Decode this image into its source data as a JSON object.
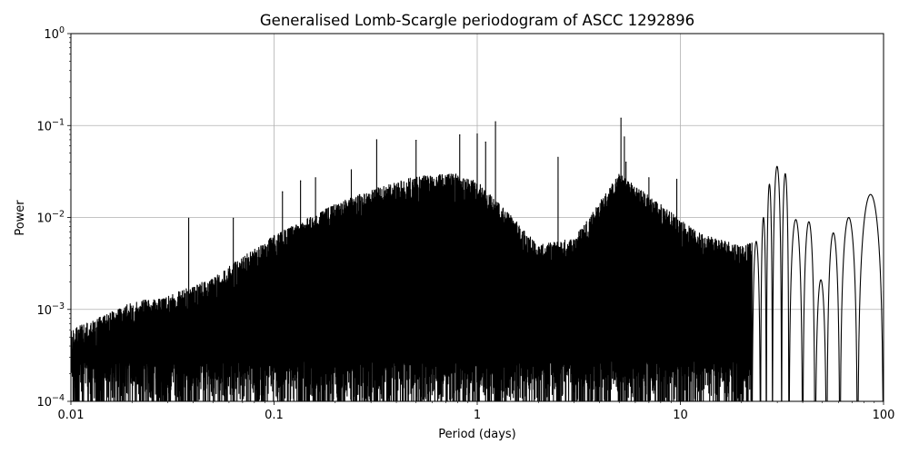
{
  "chart_data": {
    "type": "line",
    "title": "Generalised Lomb-Scargle periodogram of ASCC 1292896",
    "xlabel": "Period (days)",
    "ylabel": "Power",
    "xscale": "log",
    "yscale": "log",
    "xlim": [
      0.01,
      100
    ],
    "ylim": [
      0.0001,
      1
    ],
    "grid": true,
    "line_color": "#000000",
    "x_ticks": [
      {
        "value": 0.01,
        "label": "0.01"
      },
      {
        "value": 0.1,
        "label": "0.1"
      },
      {
        "value": 1,
        "label": "1"
      },
      {
        "value": 10,
        "label": "10"
      },
      {
        "value": 100,
        "label": "100"
      }
    ],
    "y_ticks": [
      {
        "value": 0.0001,
        "base": "10",
        "exp": "−4"
      },
      {
        "value": 0.001,
        "base": "10",
        "exp": "−3"
      },
      {
        "value": 0.01,
        "base": "10",
        "exp": "−2"
      },
      {
        "value": 0.1,
        "base": "10",
        "exp": "−1"
      },
      {
        "value": 1,
        "base": "10",
        "exp": "0"
      }
    ],
    "series": [
      {
        "envelope": [
          [
            0.01,
            0.0006
          ],
          [
            0.015,
            0.0009
          ],
          [
            0.02,
            0.0012
          ],
          [
            0.03,
            0.0014
          ],
          [
            0.04,
            0.0018
          ],
          [
            0.05,
            0.0022
          ],
          [
            0.06,
            0.003
          ],
          [
            0.08,
            0.0045
          ],
          [
            0.1,
            0.0065
          ],
          [
            0.15,
            0.01
          ],
          [
            0.2,
            0.014
          ],
          [
            0.3,
            0.02
          ],
          [
            0.5,
            0.028
          ],
          [
            0.8,
            0.03
          ],
          [
            1.0,
            0.025
          ],
          [
            1.5,
            0.01
          ],
          [
            2.0,
            0.005
          ],
          [
            3.0,
            0.006
          ],
          [
            5.0,
            0.03
          ],
          [
            8.0,
            0.014
          ],
          [
            12.0,
            0.007
          ],
          [
            20.0,
            0.005
          ],
          [
            30.0,
            0.006
          ]
        ],
        "peaks": [
          [
            0.038,
            0.0098
          ],
          [
            0.063,
            0.0098
          ],
          [
            0.11,
            0.019
          ],
          [
            0.135,
            0.025
          ],
          [
            0.16,
            0.027
          ],
          [
            0.24,
            0.033
          ],
          [
            0.32,
            0.07
          ],
          [
            0.5,
            0.069
          ],
          [
            0.82,
            0.079
          ],
          [
            1.0,
            0.081
          ],
          [
            1.1,
            0.066
          ],
          [
            1.23,
            0.11
          ],
          [
            2.5,
            0.045
          ],
          [
            5.1,
            0.12
          ],
          [
            5.3,
            0.075
          ],
          [
            5.4,
            0.04
          ],
          [
            7.0,
            0.027
          ],
          [
            9.6,
            0.026
          ]
        ],
        "lobes": [
          {
            "lo": 22.5,
            "hi": 24.8,
            "peak": 0.0055
          },
          {
            "lo": 24.8,
            "hi": 26.5,
            "peak": 0.01
          },
          {
            "lo": 26.5,
            "hi": 28.4,
            "peak": 0.023
          },
          {
            "lo": 28.4,
            "hi": 31.5,
            "peak": 0.036
          },
          {
            "lo": 31.5,
            "hi": 34.2,
            "peak": 0.03
          },
          {
            "lo": 34.2,
            "hi": 40.0,
            "peak": 0.0095
          },
          {
            "lo": 40.0,
            "hi": 46.0,
            "peak": 0.009
          },
          {
            "lo": 46.0,
            "hi": 52.5,
            "peak": 0.0021
          },
          {
            "lo": 52.5,
            "hi": 61.0,
            "peak": 0.0068
          },
          {
            "lo": 61.0,
            "hi": 74.5,
            "peak": 0.01
          },
          {
            "lo": 74.5,
            "hi": 100.0,
            "peak": 0.0178
          }
        ],
        "end_value": 0.0016
      }
    ]
  }
}
